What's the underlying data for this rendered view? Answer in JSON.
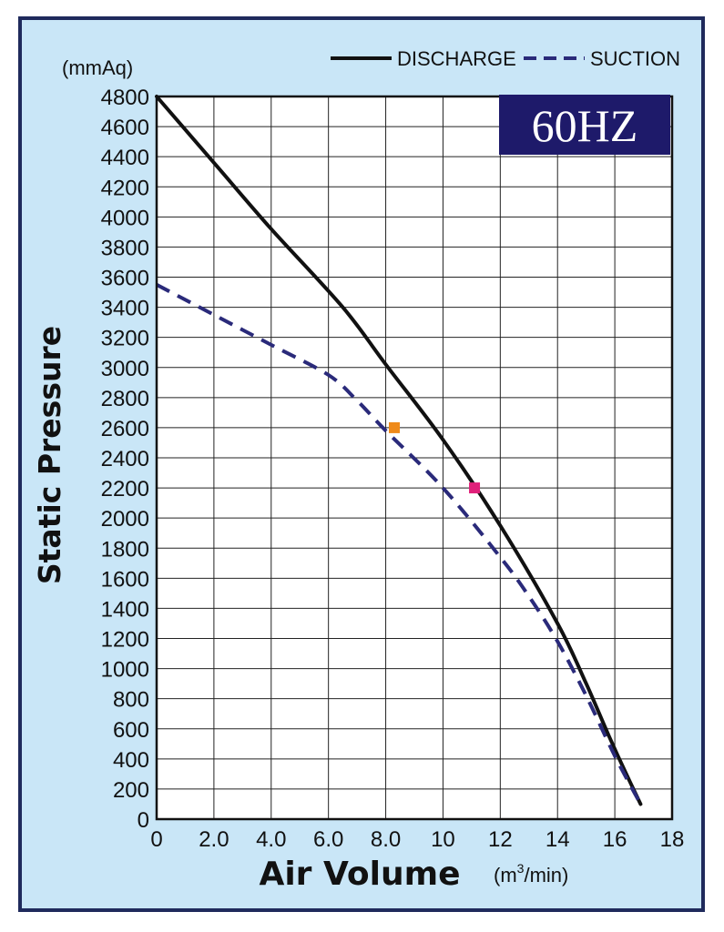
{
  "chart_data": {
    "type": "line",
    "title": "",
    "badge": "60HZ",
    "xlabel": "Air Volume",
    "xunit_base": "(m",
    "xunit_sup": "3",
    "xunit_tail": "/min)",
    "ylabel": "Static Pressure",
    "yunit": "(mmAq)",
    "xlim": [
      0,
      18
    ],
    "ylim": [
      0,
      4800
    ],
    "xticks": [
      "0",
      "2.0",
      "4.0",
      "6.0",
      "8.0",
      "10",
      "12",
      "14",
      "16",
      "18"
    ],
    "yticks": [
      "0",
      "200",
      "400",
      "600",
      "800",
      "1000",
      "1200",
      "1400",
      "1600",
      "1800",
      "2000",
      "2200",
      "2400",
      "2600",
      "2800",
      "3000",
      "3200",
      "3400",
      "3600",
      "3800",
      "4000",
      "4200",
      "4400",
      "4600",
      "4800"
    ],
    "grid": true,
    "legend_position": "top-right",
    "series": [
      {
        "name": "DISCHARGE",
        "style": "solid",
        "color": "#111111",
        "x": [
          0,
          2,
          4,
          6.5,
          8,
          10,
          12,
          14,
          15,
          15.8,
          16.4,
          16.9
        ],
        "y": [
          4800,
          4360,
          3920,
          3400,
          3020,
          2520,
          1950,
          1300,
          900,
          550,
          300,
          100
        ]
      },
      {
        "name": "SUCTION",
        "style": "dashed",
        "color": "#2a2a7a",
        "x": [
          0,
          2,
          4,
          6,
          7,
          8,
          10,
          12,
          13,
          14,
          15,
          16,
          16.9
        ],
        "y": [
          3550,
          3350,
          3150,
          2950,
          2780,
          2580,
          2200,
          1740,
          1480,
          1180,
          820,
          420,
          100
        ]
      }
    ],
    "markers": [
      {
        "x": 8.3,
        "y": 2600,
        "color": "#ef8a1a"
      },
      {
        "x": 11.1,
        "y": 2200,
        "color": "#e0207a"
      }
    ]
  },
  "colors": {
    "background": "#c9e6f7",
    "plot_area": "#ffffff",
    "frame": "#1f2a5c",
    "badge_bg": "#1e1a6a"
  }
}
